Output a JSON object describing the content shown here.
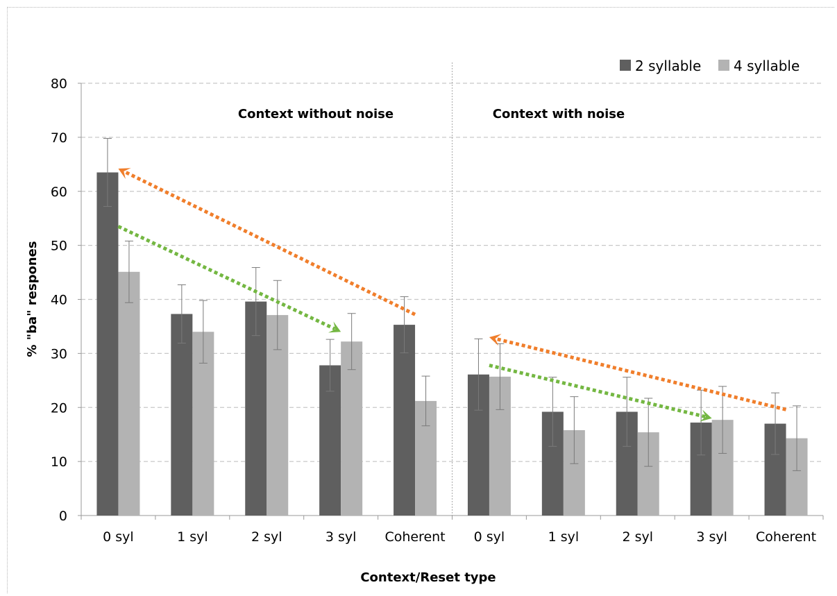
{
  "chart_data": {
    "type": "bar",
    "xlabel": "Context/Reset type",
    "ylabel": "% \"ba\" respones",
    "ylim": [
      0,
      80
    ],
    "yticks": [
      0,
      10,
      20,
      30,
      40,
      50,
      60,
      70,
      80
    ],
    "grid": true,
    "legend_position": "top-right",
    "categories": [
      "0 syl",
      "1 syl",
      "2 syl",
      "3 syl",
      "Coherent",
      "0 syl",
      "1 syl",
      "2 syl",
      "3 syl",
      "Coherent"
    ],
    "panels": [
      "Context without noise",
      "Context with noise"
    ],
    "series": [
      {
        "name": "2 syllable",
        "color": "#5f5f5f",
        "values": [
          63.5,
          37.3,
          39.6,
          27.8,
          35.3,
          26.1,
          19.2,
          19.2,
          17.2,
          17.0
        ],
        "error": [
          6.3,
          5.4,
          6.3,
          4.8,
          5.2,
          6.6,
          6.4,
          6.4,
          6.0,
          5.7
        ]
      },
      {
        "name": "4 syllable",
        "color": "#b3b3b3",
        "values": [
          45.1,
          34.0,
          37.1,
          32.2,
          21.2,
          25.7,
          15.8,
          15.4,
          17.7,
          14.3
        ],
        "error": [
          5.7,
          5.8,
          6.4,
          5.2,
          4.6,
          6.1,
          6.2,
          6.3,
          6.2,
          6.0
        ]
      }
    ],
    "annotations": [
      {
        "type": "dotted-arrow",
        "color": "#f07e2b",
        "from": {
          "x": 4,
          "y": 37.2
        },
        "to": {
          "x": 0,
          "y": 64.2
        }
      },
      {
        "type": "dotted-arrow",
        "color": "#74b742",
        "from": {
          "x": 0,
          "y": 53.5
        },
        "to": {
          "x": 3,
          "y": 34.0
        }
      },
      {
        "type": "dotted-arrow",
        "color": "#f07e2b",
        "from": {
          "x": 9,
          "y": 19.6
        },
        "to": {
          "x": 5,
          "y": 33.0
        }
      },
      {
        "type": "dotted-arrow",
        "color": "#74b742",
        "from": {
          "x": 5,
          "y": 27.8
        },
        "to": {
          "x": 8,
          "y": 18.0
        }
      }
    ]
  }
}
